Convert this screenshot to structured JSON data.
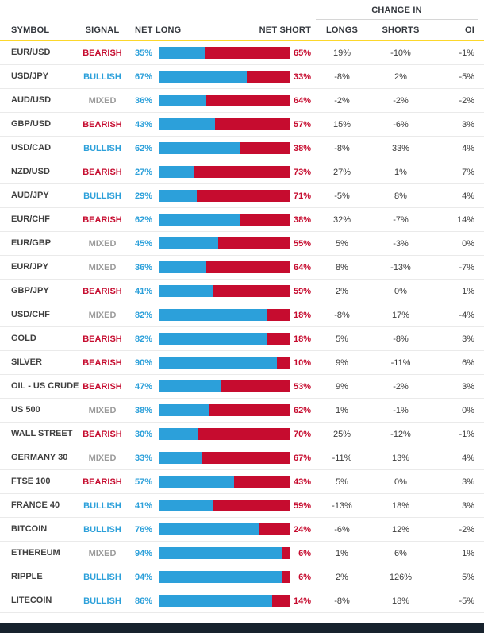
{
  "chart_data": {
    "type": "table",
    "group_header": "CHANGE IN",
    "columns": {
      "symbol": "SYMBOL",
      "signal": "SIGNAL",
      "net_long": "NET LONG",
      "net_short": "NET SHORT",
      "longs": "LONGS",
      "shorts": "SHORTS",
      "oi": "OI"
    },
    "rows": [
      {
        "symbol": "EUR/USD",
        "signal": "BEARISH",
        "net_long": "35%",
        "net_short": "65%",
        "change_longs": "19%",
        "change_shorts": "-10%",
        "change_oi": "-1%"
      },
      {
        "symbol": "USD/JPY",
        "signal": "BULLISH",
        "net_long": "67%",
        "net_short": "33%",
        "change_longs": "-8%",
        "change_shorts": "2%",
        "change_oi": "-5%"
      },
      {
        "symbol": "AUD/USD",
        "signal": "MIXED",
        "net_long": "36%",
        "net_short": "64%",
        "change_longs": "-2%",
        "change_shorts": "-2%",
        "change_oi": "-2%"
      },
      {
        "symbol": "GBP/USD",
        "signal": "BEARISH",
        "net_long": "43%",
        "net_short": "57%",
        "change_longs": "15%",
        "change_shorts": "-6%",
        "change_oi": "3%"
      },
      {
        "symbol": "USD/CAD",
        "signal": "BULLISH",
        "net_long": "62%",
        "net_short": "38%",
        "change_longs": "-8%",
        "change_shorts": "33%",
        "change_oi": "4%"
      },
      {
        "symbol": "NZD/USD",
        "signal": "BEARISH",
        "net_long": "27%",
        "net_short": "73%",
        "change_longs": "27%",
        "change_shorts": "1%",
        "change_oi": "7%"
      },
      {
        "symbol": "AUD/JPY",
        "signal": "BULLISH",
        "net_long": "29%",
        "net_short": "71%",
        "change_longs": "-5%",
        "change_shorts": "8%",
        "change_oi": "4%"
      },
      {
        "symbol": "EUR/CHF",
        "signal": "BEARISH",
        "net_long": "62%",
        "net_short": "38%",
        "change_longs": "32%",
        "change_shorts": "-7%",
        "change_oi": "14%"
      },
      {
        "symbol": "EUR/GBP",
        "signal": "MIXED",
        "net_long": "45%",
        "net_short": "55%",
        "change_longs": "5%",
        "change_shorts": "-3%",
        "change_oi": "0%"
      },
      {
        "symbol": "EUR/JPY",
        "signal": "MIXED",
        "net_long": "36%",
        "net_short": "64%",
        "change_longs": "8%",
        "change_shorts": "-13%",
        "change_oi": "-7%"
      },
      {
        "symbol": "GBP/JPY",
        "signal": "BEARISH",
        "net_long": "41%",
        "net_short": "59%",
        "change_longs": "2%",
        "change_shorts": "0%",
        "change_oi": "1%"
      },
      {
        "symbol": "USD/CHF",
        "signal": "MIXED",
        "net_long": "82%",
        "net_short": "18%",
        "change_longs": "-8%",
        "change_shorts": "17%",
        "change_oi": "-4%"
      },
      {
        "symbol": "GOLD",
        "signal": "BEARISH",
        "net_long": "82%",
        "net_short": "18%",
        "change_longs": "5%",
        "change_shorts": "-8%",
        "change_oi": "3%"
      },
      {
        "symbol": "SILVER",
        "signal": "BEARISH",
        "net_long": "90%",
        "net_short": "10%",
        "change_longs": "9%",
        "change_shorts": "-11%",
        "change_oi": "6%"
      },
      {
        "symbol": "OIL - US CRUDE",
        "signal": "BEARISH",
        "net_long": "47%",
        "net_short": "53%",
        "change_longs": "9%",
        "change_shorts": "-2%",
        "change_oi": "3%"
      },
      {
        "symbol": "US 500",
        "signal": "MIXED",
        "net_long": "38%",
        "net_short": "62%",
        "change_longs": "1%",
        "change_shorts": "-1%",
        "change_oi": "0%"
      },
      {
        "symbol": "WALL STREET",
        "signal": "BEARISH",
        "net_long": "30%",
        "net_short": "70%",
        "change_longs": "25%",
        "change_shorts": "-12%",
        "change_oi": "-1%"
      },
      {
        "symbol": "GERMANY 30",
        "signal": "MIXED",
        "net_long": "33%",
        "net_short": "67%",
        "change_longs": "-11%",
        "change_shorts": "13%",
        "change_oi": "4%"
      },
      {
        "symbol": "FTSE 100",
        "signal": "BEARISH",
        "net_long": "57%",
        "net_short": "43%",
        "change_longs": "5%",
        "change_shorts": "0%",
        "change_oi": "3%"
      },
      {
        "symbol": "FRANCE 40",
        "signal": "BULLISH",
        "net_long": "41%",
        "net_short": "59%",
        "change_longs": "-13%",
        "change_shorts": "18%",
        "change_oi": "3%"
      },
      {
        "symbol": "BITCOIN",
        "signal": "BULLISH",
        "net_long": "76%",
        "net_short": "24%",
        "change_longs": "-6%",
        "change_shorts": "12%",
        "change_oi": "-2%"
      },
      {
        "symbol": "ETHEREUM",
        "signal": "MIXED",
        "net_long": "94%",
        "net_short": "6%",
        "change_longs": "1%",
        "change_shorts": "6%",
        "change_oi": "1%"
      },
      {
        "symbol": "RIPPLE",
        "signal": "BULLISH",
        "net_long": "94%",
        "net_short": "6%",
        "change_longs": "2%",
        "change_shorts": "126%",
        "change_oi": "5%"
      },
      {
        "symbol": "LITECOIN",
        "signal": "BULLISH",
        "net_long": "86%",
        "net_short": "14%",
        "change_longs": "-8%",
        "change_shorts": "18%",
        "change_oi": "-5%"
      }
    ]
  },
  "colors": {
    "long_blue": "#2CA0DA",
    "short_red": "#C60C2F",
    "mixed_gray": "#9B9B9B",
    "header_underline": "#FCD72B",
    "footer_bar": "#17222D"
  }
}
